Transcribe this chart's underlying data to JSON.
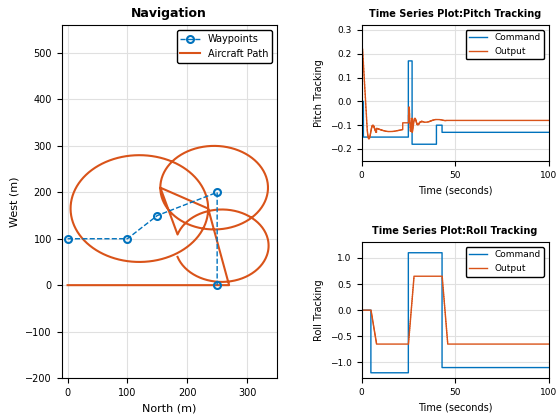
{
  "nav_title": "Navigation",
  "nav_xlabel": "North (m)",
  "nav_ylabel": "West (m)",
  "nav_xlim": [
    -10,
    350
  ],
  "nav_ylim": [
    -200,
    560
  ],
  "nav_xticks": [
    0,
    100,
    200,
    300
  ],
  "nav_yticks": [
    -200,
    -100,
    0,
    100,
    200,
    300,
    400,
    500
  ],
  "waypoints_x": [
    0,
    100,
    150,
    250,
    250
  ],
  "waypoints_y": [
    100,
    100,
    150,
    200,
    0
  ],
  "pitch_title": "Time Series Plot:Pitch Tracking",
  "pitch_xlabel": "Time (seconds)",
  "pitch_ylabel": "Pitch Tracking",
  "pitch_xlim": [
    0,
    100
  ],
  "pitch_ylim": [
    -0.25,
    0.32
  ],
  "pitch_yticks": [
    -0.2,
    -0.1,
    0.0,
    0.1,
    0.2,
    0.3
  ],
  "pitch_xticks": [
    0,
    50,
    100
  ],
  "roll_title": "Time Series Plot:Roll Tracking",
  "roll_xlabel": "Time (seconds)",
  "roll_ylabel": "Roll Tracking",
  "roll_xlim": [
    0,
    100
  ],
  "roll_ylim": [
    -1.3,
    1.3
  ],
  "roll_yticks": [
    -1.0,
    -0.5,
    0.0,
    0.5,
    1.0
  ],
  "roll_xticks": [
    0,
    50,
    100
  ],
  "color_blue": "#0072BD",
  "color_orange": "#D95319",
  "bg_color": "#FFFFFF",
  "grid_color": "#E0E0E0"
}
